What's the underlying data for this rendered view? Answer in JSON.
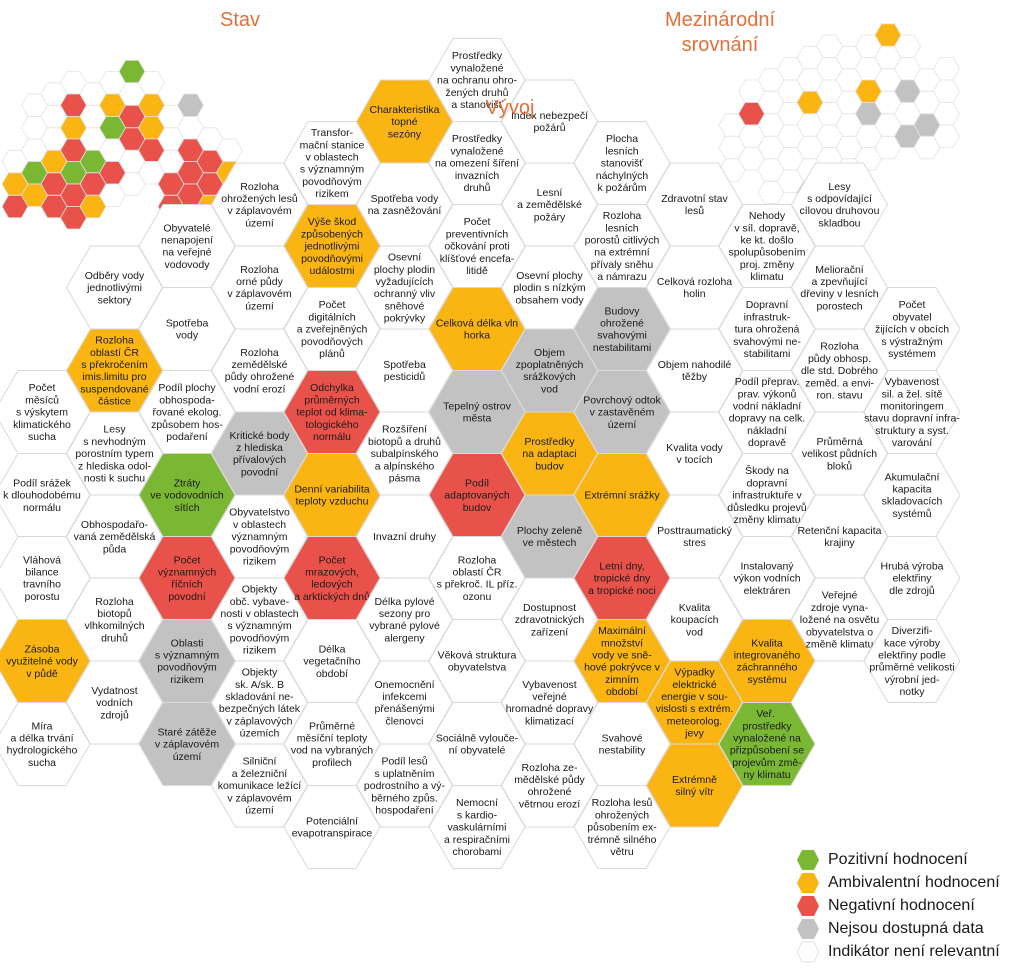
{
  "titles": {
    "stav": "Stav",
    "vyvoj": "Vývoj",
    "mezinarodni": [
      "Mezinárodní",
      "srovnání"
    ]
  },
  "colors": {
    "green": "#7ab733",
    "orange": "#fab512",
    "red": "#e9524a",
    "gray": "#c2c2c2",
    "none": "#ffffff"
  },
  "legend": [
    {
      "color": "green",
      "label": "Pozitivní hodnocení"
    },
    {
      "color": "orange",
      "label": "Ambivalentní hodnocení"
    },
    {
      "color": "red",
      "label": "Negativní hodnocení"
    },
    {
      "color": "gray",
      "label": "Nejsou dostupná data"
    },
    {
      "color": "none",
      "label": "Indikátor není relevantní"
    }
  ],
  "main_hexes": [
    {
      "c": 0,
      "r": 3,
      "color": "none",
      "text": "Počet\nměsíců\ns výskytem\nklimatického\nsucha"
    },
    {
      "c": 0,
      "r": 4,
      "color": "none",
      "text": "Podíl srážek\nk dlouhodobému\nnormálu"
    },
    {
      "c": 0,
      "r": 5,
      "color": "none",
      "text": "Vláhová\nbilance\ntravního\nporostu"
    },
    {
      "c": 0,
      "r": 6,
      "color": "orange",
      "text": "Zásoba\nvyužitelné vody\nv půdě"
    },
    {
      "c": 0,
      "r": 7,
      "color": "none",
      "text": "Míra\na délka trvání\nhydrologického\nsucha"
    },
    {
      "c": 1,
      "r": 2,
      "color": "none",
      "text": "Odběry vody\njednotlivými\nsektory"
    },
    {
      "c": 1,
      "r": 3,
      "color": "orange",
      "text": "Rozloha\noblastí ČR\ns překročením\nimis.limitu pro\nsuspendované\nčástice"
    },
    {
      "c": 1,
      "r": 4,
      "color": "none",
      "text": "Lesy\ns nevhodným\nporostním typem\nz hlediska odol-\nnosti k suchu"
    },
    {
      "c": 1,
      "r": 5,
      "color": "none",
      "text": "Obhospodařo-\nvaná zemědělská\npůda"
    },
    {
      "c": 1,
      "r": 6,
      "color": "none",
      "text": "Rozloha\nbiotopů\nvlhkomilných\ndruhů"
    },
    {
      "c": 1,
      "r": 7,
      "color": "none",
      "text": "Vydatnost\nvodních\nzdrojů"
    },
    {
      "c": 2,
      "r": 1,
      "color": "none",
      "text": "Obyvatelé\nnenapojení\nna veřejné\nvodovody"
    },
    {
      "c": 2,
      "r": 2,
      "color": "none",
      "text": "Spotřeba\nvody"
    },
    {
      "c": 2,
      "r": 3,
      "color": "none",
      "text": "Podíl plochy\nobhospoda-\nřované ekolog.\nzpůsobem hos-\npodaření"
    },
    {
      "c": 2,
      "r": 4,
      "color": "green",
      "text": "Ztráty\nve vodovodních\nsítích"
    },
    {
      "c": 2,
      "r": 5,
      "color": "red",
      "text": "Počet\nvýznamných\nříčních\npovodní"
    },
    {
      "c": 2,
      "r": 6,
      "color": "gray",
      "text": "Oblasti\ns významným\npovodňovým\nrizikem"
    },
    {
      "c": 2,
      "r": 7,
      "color": "gray",
      "text": "Staré zátěže\nv záplavovém\núzemí"
    },
    {
      "c": 3,
      "r": 1,
      "color": "none",
      "text": "Rozloha\nohrožených lesů\nv záplavovém\núzemí"
    },
    {
      "c": 3,
      "r": 2,
      "color": "none",
      "text": "Rozloha\norné půdy\nv záplavovém\núzemí"
    },
    {
      "c": 3,
      "r": 3,
      "color": "none",
      "text": "Rozloha\nzemědělské\npůdy ohrožené\nvodní erozí"
    },
    {
      "c": 3,
      "r": 4,
      "color": "gray",
      "text": "Kritické body\nz hlediska\npřívalových\npovodní"
    },
    {
      "c": 3,
      "r": 5,
      "color": "none",
      "text": "Obyvatelstvo\nv oblastech\nvýznamným\npovodňovým\nrizikem"
    },
    {
      "c": 3,
      "r": 6,
      "color": "none",
      "text": "Objekty\nobč. vybave-\nnosti v oblastech\ns významným\npovodňovým\nrizikem"
    },
    {
      "c": 3,
      "r": 7,
      "color": "none",
      "text": "Objekty\nsk. A/sk. B\nskladování ne-\nbezpečných látek\nv záplavových\núzemích"
    },
    {
      "c": 3,
      "r": 8,
      "color": "none",
      "text": "Silniční\na železniční\nkomunikace ležící\nv záplavovém\núzemí"
    },
    {
      "c": 4,
      "r": 0,
      "color": "none",
      "text": "Transfor-\nmační stanice\nv oblastech\ns významným\npovodňovým\nrizikem"
    },
    {
      "c": 4,
      "r": 1,
      "color": "orange",
      "text": "Výše škod\nzpůsobených\njednotlivými\npovodňovými\nudálostmi"
    },
    {
      "c": 4,
      "r": 2,
      "color": "none",
      "text": "Počet\ndigitálních\na zveřejněných\npovodňových\nplánů"
    },
    {
      "c": 4,
      "r": 3,
      "color": "red",
      "text": "Odchylka\nprůměrných\nteplot od klima-\ntologického\nnormálu"
    },
    {
      "c": 4,
      "r": 4,
      "color": "orange",
      "text": "Denní variabilita\nteploty vzduchu"
    },
    {
      "c": 4,
      "r": 5,
      "color": "red",
      "text": "Počet\nmrazových,\nledových\na arktických dnů"
    },
    {
      "c": 4,
      "r": 6,
      "color": "none",
      "text": "Délka\nvegetačního\nobdobí"
    },
    {
      "c": 4,
      "r": 7,
      "color": "none",
      "text": "Průměrné\nměsíční teploty\nvod na vybraných\nprofilech"
    },
    {
      "c": 4,
      "r": 8,
      "color": "none",
      "text": "Potenciální\nevapotranspirace"
    },
    {
      "c": 5,
      "r": 0,
      "color": "orange",
      "text": "Charakteristika\ntopné\nsezóny"
    },
    {
      "c": 5,
      "r": 1,
      "color": "none",
      "text": "Spotřeba vody\nna zasněžování"
    },
    {
      "c": 5,
      "r": 2,
      "color": "none",
      "text": "Osevní\nplochy plodin\nvyžadujících\nochranný vliv\nsněhové\npokrývky"
    },
    {
      "c": 5,
      "r": 3,
      "color": "none",
      "text": "Spotřeba\npesticidů"
    },
    {
      "c": 5,
      "r": 4,
      "color": "none",
      "text": "Rozšíření\nbiotopů a druhů\nsubalpínského\na alpínského\npásma"
    },
    {
      "c": 5,
      "r": 5,
      "color": "none",
      "text": "Invazní druhy"
    },
    {
      "c": 5,
      "r": 6,
      "color": "none",
      "text": "Délka pylové\nsezony pro\nvybrané pylové\nalergeny"
    },
    {
      "c": 5,
      "r": 7,
      "color": "none",
      "text": "Onemocnění\ninfekcemi\npřenášenými\nčlenovci"
    },
    {
      "c": 5,
      "r": 8,
      "color": "none",
      "text": "Podíl lesů\ns uplatněním\npodrostního a vý-\nběrného způs.\nhospodaření"
    },
    {
      "c": 6,
      "r": -1,
      "color": "none",
      "text": "Prostředky\nvynaložené\nna ochranu ohro-\nžených druhů\na stanovišť"
    },
    {
      "c": 6,
      "r": 0,
      "color": "none",
      "text": "Prostředky\nvynaložené\nna omezení šíření\ninvazních\ndruhů"
    },
    {
      "c": 6,
      "r": 1,
      "color": "none",
      "text": "Počet\npreventivních\nočkování proti\nklíšťové encefa-\nlitidě"
    },
    {
      "c": 6,
      "r": 2,
      "color": "orange",
      "text": "Celková délka vln\nhorka"
    },
    {
      "c": 6,
      "r": 3,
      "color": "gray",
      "text": "Tepelný ostrov\nměsta"
    },
    {
      "c": 6,
      "r": 4,
      "color": "red",
      "text": "Podíl\nadaptovaných\nbudov"
    },
    {
      "c": 6,
      "r": 5,
      "color": "none",
      "text": "Rozloha\noblastí ČR\ns překroč. IL příz.\nozonu"
    },
    {
      "c": 6,
      "r": 6,
      "color": "none",
      "text": "Věková struktura\nobyvatelstva"
    },
    {
      "c": 6,
      "r": 7,
      "color": "none",
      "text": "Sociálně vylouče-\nní obyvatelé"
    },
    {
      "c": 6,
      "r": 8,
      "color": "none",
      "text": "Nemocní\ns kardio-\nvaskulárními\na respiračními\nchorobami"
    },
    {
      "c": 7,
      "r": 0,
      "color": "none",
      "text": "Index nebezpečí\npožárů"
    },
    {
      "c": 7,
      "r": 1,
      "color": "none",
      "text": "Lesní\na zemědělské\npožáry"
    },
    {
      "c": 7,
      "r": 2,
      "color": "none",
      "text": "Osevní plochy\nplodin s nízkým\nobsahem vody"
    },
    {
      "c": 7,
      "r": 3,
      "color": "gray",
      "text": "Objem\nzpoplatněných\nsrážkových\nvod"
    },
    {
      "c": 7,
      "r": 4,
      "color": "orange",
      "text": "Prostředky\nna adaptaci\nbudov"
    },
    {
      "c": 7,
      "r": 5,
      "color": "gray",
      "text": "Plochy zeleně\nve městech"
    },
    {
      "c": 7,
      "r": 6,
      "color": "none",
      "text": "Dostupnost\nzdravotnických\nzařízení"
    },
    {
      "c": 7,
      "r": 7,
      "color": "none",
      "text": "Vybavenost\nveřejné\nhromadné dopravy\nklimatizací"
    },
    {
      "c": 7,
      "r": 8,
      "color": "none",
      "text": "Rozloha ze-\nmědělské půdy\nohrožené\nvětrnou erozí"
    },
    {
      "c": 8,
      "r": 0,
      "color": "none",
      "text": "Plocha\nlesních\nstanovišť\nnáchylných\nk požárům"
    },
    {
      "c": 8,
      "r": 1,
      "color": "none",
      "text": "Rozloha\nlesních\nporostů citlivých\nna extrémní\npřívaly sněhu\na námrazu"
    },
    {
      "c": 8,
      "r": 2,
      "color": "gray",
      "text": "Budovy\nohrožené\nsvahovými\nnestabilitami"
    },
    {
      "c": 8,
      "r": 3,
      "color": "gray",
      "text": "Povrchový odtok\nv zastavěném\núzemí"
    },
    {
      "c": 8,
      "r": 4,
      "color": "orange",
      "text": "Extrémní srážky"
    },
    {
      "c": 8,
      "r": 5,
      "color": "red",
      "text": "Letní dny,\ntropické dny\na tropické noci"
    },
    {
      "c": 8,
      "r": 6,
      "color": "orange",
      "text": "Maximální\nmnožství\nvody ve sně-\nhové pokrývce v\nzimním\nobdobí"
    },
    {
      "c": 8,
      "r": 7,
      "color": "none",
      "text": "Svahové\nnestability"
    },
    {
      "c": 8,
      "r": 8,
      "color": "none",
      "text": "Rozloha lesů\nohrožených\npůsobením ex-\ntrémně silného\nvětru"
    },
    {
      "c": 9,
      "r": 1,
      "color": "none",
      "text": "Zdravotní stav\nlesů"
    },
    {
      "c": 9,
      "r": 2,
      "color": "none",
      "text": "Celková rozloha\nholin"
    },
    {
      "c": 9,
      "r": 3,
      "color": "none",
      "text": "Objem nahodilé\ntěžby"
    },
    {
      "c": 9,
      "r": 4,
      "color": "none",
      "text": "Kvalita vody\nv tocích"
    },
    {
      "c": 9,
      "r": 5,
      "color": "none",
      "text": "Posttraumatický\nstres"
    },
    {
      "c": 9,
      "r": 6,
      "color": "none",
      "text": "Kvalita\nkoupacích\nvod"
    },
    {
      "c": 9,
      "r": 7,
      "color": "orange",
      "text": "Výpadky\nelektrické\nenergie v sou-\nvislosti s extrém.\nmeteorolog.\njevy"
    },
    {
      "c": 9,
      "r": 8,
      "color": "orange",
      "text": "Extrémně\nsilný vítr"
    },
    {
      "c": 10,
      "r": 1,
      "color": "none",
      "text": "Nehody\nv síl. dopravě,\nke kt. došlo\nspolupůsobením\nproj. změny\nklimatu"
    },
    {
      "c": 10,
      "r": 2,
      "color": "none",
      "text": "Dopravní\ninfrastruk-\ntura ohrožená\nsvahovými ne-\nstabilitami"
    },
    {
      "c": 10,
      "r": 3,
      "color": "none",
      "text": "Podíl přeprav.\nprav. výkonů\nvodní nákladní\ndopravy na celk.\nnákladní\ndopravě"
    },
    {
      "c": 10,
      "r": 4,
      "color": "none",
      "text": "Škody na\ndopravní\ninfrastruktuře v\ndůsledku projevů\nzměny klimatu"
    },
    {
      "c": 10,
      "r": 5,
      "color": "none",
      "text": "Instalovaný\nvýkon vodních\nelektráren"
    },
    {
      "c": 10,
      "r": 6,
      "color": "orange",
      "text": "Kvalita\nintegrovaného\nzáchranného\nsystému"
    },
    {
      "c": 10,
      "r": 7,
      "color": "green",
      "text": "Veř. \nprostředky\nvynaložené na\npřizpůsobení se\nprojevům změ-\nny klimatu"
    },
    {
      "c": 11,
      "r": 1,
      "color": "none",
      "text": "Lesy\ns odpovídající\ncílovou druhovou\nskladbou"
    },
    {
      "c": 11,
      "r": 2,
      "color": "none",
      "text": "Meliorační\na zpevňující\ndřeviny v lesních\nporostech"
    },
    {
      "c": 11,
      "r": 3,
      "color": "none",
      "text": "Rozloha\npůdy obhosp.\ndle std. Dobrého\nzeměd. a envi-\nron. stavu"
    },
    {
      "c": 11,
      "r": 4,
      "color": "none",
      "text": "Průměrná\nvelikost půdních\nbloků"
    },
    {
      "c": 11,
      "r": 5,
      "color": "none",
      "text": "Retenční kapacita\nkrajiny"
    },
    {
      "c": 11,
      "r": 6,
      "color": "none",
      "text": "Veřejné\nzdroje vyna-\nložené na osvětu\nobyvatelstva o\nzměně klimatu"
    },
    {
      "c": 12,
      "r": 2,
      "color": "none",
      "text": "Počet\nobyvatel\nžijících v obcích\ns výstražným\nsystémem"
    },
    {
      "c": 12,
      "r": 3,
      "color": "none",
      "text": "Vybavenost\nsil. a žel. sítě\nmonitoringem\nstavu dopravní infra-\nstruktury a syst.\nvarování"
    },
    {
      "c": 12,
      "r": 4,
      "color": "none",
      "text": "Akumulační\nkapacita\nskladovacích\nsystémů"
    },
    {
      "c": 12,
      "r": 5,
      "color": "none",
      "text": "Hrubá výroba\nelektřiny\ndle zdrojů"
    },
    {
      "c": 12,
      "r": 6,
      "color": "none",
      "text": "Diverzifi-\nkace výroby\nelektřiny podle\nprůměrné velikosti\nvýrobní jed-\nnotky"
    }
  ],
  "mini_stav": [
    [
      0,
      3,
      "none"
    ],
    [
      0,
      4,
      "orange"
    ],
    [
      0,
      5,
      "red"
    ],
    [
      1,
      1,
      "none"
    ],
    [
      1,
      2,
      "none"
    ],
    [
      1,
      3,
      "none"
    ],
    [
      1,
      4,
      "green"
    ],
    [
      1,
      5,
      "orange"
    ],
    [
      2,
      0,
      "none"
    ],
    [
      2,
      1,
      "none"
    ],
    [
      2,
      2,
      "none"
    ],
    [
      2,
      3,
      "orange"
    ],
    [
      2,
      4,
      "red"
    ],
    [
      2,
      5,
      "red"
    ],
    [
      3,
      0,
      "none"
    ],
    [
      3,
      1,
      "red"
    ],
    [
      3,
      2,
      "orange"
    ],
    [
      3,
      3,
      "red"
    ],
    [
      3,
      4,
      "green"
    ],
    [
      3,
      5,
      "red"
    ],
    [
      3,
      6,
      "red"
    ],
    [
      4,
      0,
      "none"
    ],
    [
      4,
      1,
      "none"
    ],
    [
      4,
      2,
      "none"
    ],
    [
      4,
      3,
      "green"
    ],
    [
      4,
      4,
      "red"
    ],
    [
      4,
      5,
      "orange"
    ],
    [
      5,
      0,
      "none"
    ],
    [
      5,
      1,
      "orange"
    ],
    [
      5,
      2,
      "green"
    ],
    [
      5,
      3,
      "none"
    ],
    [
      5,
      4,
      "red"
    ],
    [
      5,
      5,
      "none"
    ],
    [
      6,
      -1,
      "green"
    ],
    [
      6,
      0,
      "none"
    ],
    [
      6,
      1,
      "red"
    ],
    [
      6,
      2,
      "red"
    ],
    [
      6,
      3,
      "none"
    ],
    [
      6,
      4,
      "none"
    ],
    [
      7,
      0,
      "none"
    ],
    [
      7,
      1,
      "orange"
    ],
    [
      7,
      2,
      "orange"
    ],
    [
      7,
      3,
      "red"
    ],
    [
      7,
      4,
      "none"
    ],
    [
      8,
      1,
      "none"
    ],
    [
      8,
      2,
      "none"
    ],
    [
      8,
      3,
      "none"
    ],
    [
      8,
      4,
      "red"
    ],
    [
      8,
      5,
      "red"
    ],
    [
      9,
      1,
      "gray"
    ],
    [
      9,
      2,
      "none"
    ],
    [
      9,
      3,
      "red"
    ],
    [
      9,
      4,
      "red"
    ],
    [
      9,
      5,
      "red"
    ],
    [
      9,
      6,
      "red"
    ],
    [
      10,
      2,
      "none"
    ],
    [
      10,
      3,
      "red"
    ],
    [
      10,
      4,
      "red"
    ],
    [
      10,
      5,
      "orange"
    ],
    [
      10,
      6,
      "orange"
    ],
    [
      11,
      3,
      "none"
    ],
    [
      11,
      4,
      "orange"
    ],
    [
      11,
      5,
      "green"
    ],
    [
      11,
      6,
      "none"
    ]
  ],
  "mini_mez": [
    [
      0,
      2,
      "none"
    ],
    [
      0,
      3,
      "none"
    ],
    [
      0,
      4,
      "none"
    ],
    [
      1,
      1,
      "none"
    ],
    [
      1,
      2,
      "red"
    ],
    [
      1,
      3,
      "none"
    ],
    [
      1,
      4,
      "none"
    ],
    [
      2,
      0,
      "none"
    ],
    [
      2,
      1,
      "none"
    ],
    [
      2,
      2,
      "none"
    ],
    [
      2,
      3,
      "none"
    ],
    [
      2,
      4,
      "none"
    ],
    [
      2,
      5,
      "none"
    ],
    [
      3,
      0,
      "none"
    ],
    [
      3,
      1,
      "none"
    ],
    [
      3,
      2,
      "none"
    ],
    [
      3,
      3,
      "none"
    ],
    [
      3,
      4,
      "none"
    ],
    [
      3,
      5,
      "none"
    ],
    [
      4,
      -1,
      "none"
    ],
    [
      4,
      0,
      "none"
    ],
    [
      4,
      1,
      "orange"
    ],
    [
      4,
      2,
      "none"
    ],
    [
      4,
      3,
      "none"
    ],
    [
      4,
      4,
      "none"
    ],
    [
      4,
      5,
      "gray"
    ],
    [
      5,
      -1,
      "none"
    ],
    [
      5,
      0,
      "none"
    ],
    [
      5,
      1,
      "none"
    ],
    [
      5,
      2,
      "none"
    ],
    [
      5,
      3,
      "none"
    ],
    [
      5,
      4,
      "none"
    ],
    [
      6,
      -1,
      "none"
    ],
    [
      6,
      0,
      "none"
    ],
    [
      6,
      1,
      "none"
    ],
    [
      6,
      2,
      "none"
    ],
    [
      6,
      3,
      "none"
    ],
    [
      6,
      4,
      "none"
    ],
    [
      7,
      -1,
      "none"
    ],
    [
      7,
      0,
      "none"
    ],
    [
      7,
      1,
      "orange"
    ],
    [
      7,
      2,
      "gray"
    ],
    [
      7,
      3,
      "none"
    ],
    [
      7,
      4,
      "none"
    ],
    [
      8,
      -2,
      "orange"
    ],
    [
      8,
      -1,
      "none"
    ],
    [
      8,
      0,
      "none"
    ],
    [
      8,
      1,
      "none"
    ],
    [
      8,
      2,
      "none"
    ],
    [
      8,
      3,
      "none"
    ],
    [
      9,
      -1,
      "none"
    ],
    [
      9,
      0,
      "none"
    ],
    [
      9,
      1,
      "gray"
    ],
    [
      9,
      2,
      "none"
    ],
    [
      9,
      3,
      "gray"
    ],
    [
      10,
      0,
      "none"
    ],
    [
      10,
      1,
      "none"
    ],
    [
      10,
      2,
      "gray"
    ],
    [
      10,
      3,
      "none"
    ],
    [
      11,
      0,
      "none"
    ],
    [
      11,
      1,
      "none"
    ],
    [
      11,
      2,
      "none"
    ],
    [
      11,
      3,
      "none"
    ]
  ]
}
